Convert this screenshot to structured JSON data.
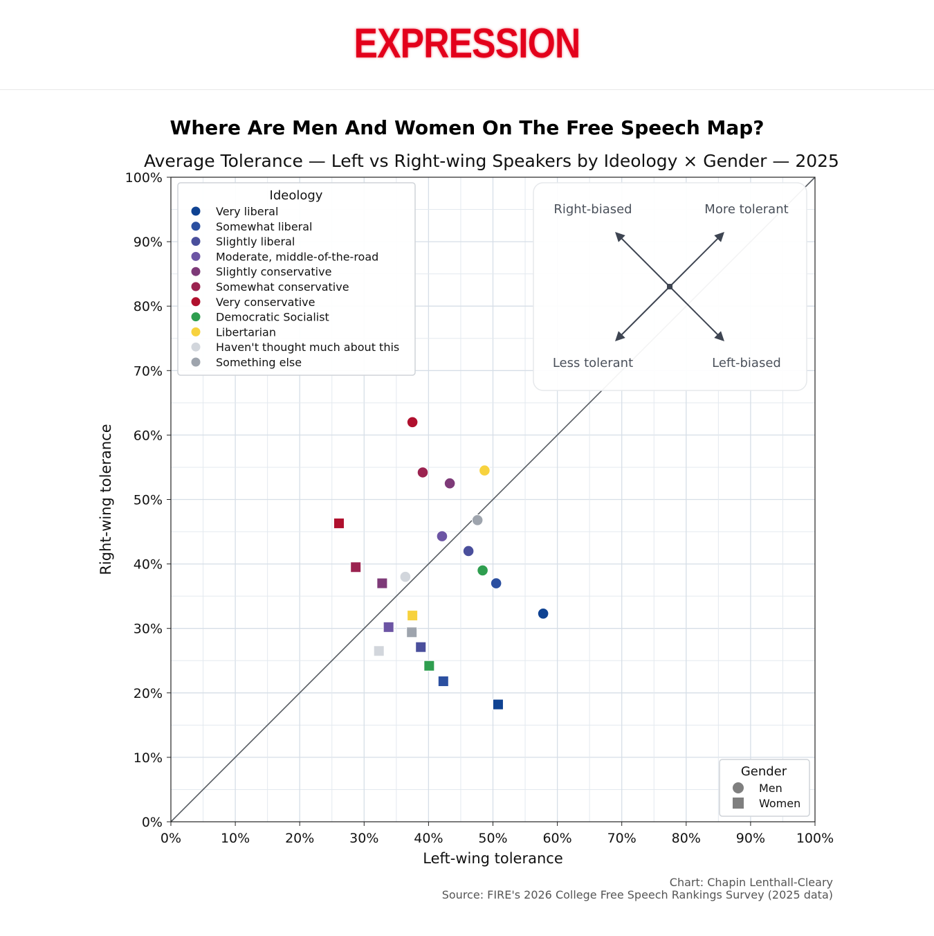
{
  "brand": {
    "logo_text": "EXPRESSION",
    "color": "#e3001b"
  },
  "chart_data": {
    "type": "scatter",
    "title": "Where Are Men And Women On The Free Speech Map?",
    "subtitle": "Average Tolerance — Left vs Right-wing Speakers by Ideology × Gender — 2025",
    "xlabel": "Left-wing tolerance",
    "ylabel": "Right-wing tolerance",
    "xlim": [
      0,
      100
    ],
    "ylim": [
      0,
      100
    ],
    "ticks": [
      0,
      10,
      20,
      30,
      40,
      50,
      60,
      70,
      80,
      90,
      100
    ],
    "tick_labels": [
      "0%",
      "10%",
      "20%",
      "30%",
      "40%",
      "50%",
      "60%",
      "70%",
      "80%",
      "90%",
      "100%"
    ],
    "grid": true,
    "diagonal_reference": true,
    "legend_ideology": {
      "title": "Ideology",
      "placement": "top-left",
      "items": [
        {
          "label": "Very liberal",
          "color": "#0f4292"
        },
        {
          "label": "Somewhat liberal",
          "color": "#2b4fa0"
        },
        {
          "label": "Slightly liberal",
          "color": "#4a4f9c"
        },
        {
          "label": "Moderate, middle-of-the-road",
          "color": "#6c55a4"
        },
        {
          "label": "Slightly conservative",
          "color": "#7e3a78"
        },
        {
          "label": "Somewhat conservative",
          "color": "#9b2350"
        },
        {
          "label": "Very conservative",
          "color": "#b0102e"
        },
        {
          "label": "Democratic Socialist",
          "color": "#2e9e4f"
        },
        {
          "label": "Libertarian",
          "color": "#f7d23e"
        },
        {
          "label": "Haven't thought much about this",
          "color": "#d2d6dc"
        },
        {
          "label": "Something else",
          "color": "#9ea4ad"
        }
      ]
    },
    "legend_gender": {
      "title": "Gender",
      "placement": "bottom-right",
      "items": [
        {
          "label": "Men",
          "marker": "circle"
        },
        {
          "label": "Women",
          "marker": "square"
        }
      ]
    },
    "quadrant_guide": {
      "top_left": "Right-biased",
      "top_right": "More tolerant",
      "bottom_left": "Less tolerant",
      "bottom_right": "Left-biased"
    },
    "series": [
      {
        "ideology": "Very liberal",
        "men": [
          57.8,
          32.3
        ],
        "women": [
          50.8,
          18.2
        ]
      },
      {
        "ideology": "Somewhat liberal",
        "men": [
          50.5,
          37.0
        ],
        "women": [
          42.3,
          21.8
        ]
      },
      {
        "ideology": "Slightly liberal",
        "men": [
          46.2,
          42.0
        ],
        "women": [
          38.8,
          27.1
        ]
      },
      {
        "ideology": "Moderate, middle-of-the-road",
        "men": [
          42.1,
          44.3
        ],
        "women": [
          33.8,
          30.2
        ]
      },
      {
        "ideology": "Slightly conservative",
        "men": [
          43.3,
          52.5
        ],
        "women": [
          32.8,
          37.0
        ]
      },
      {
        "ideology": "Somewhat conservative",
        "men": [
          39.1,
          54.2
        ],
        "women": [
          28.7,
          39.5
        ]
      },
      {
        "ideology": "Very conservative",
        "men": [
          37.5,
          62.0
        ],
        "women": [
          26.1,
          46.3
        ]
      },
      {
        "ideology": "Democratic Socialist",
        "men": [
          48.4,
          39.0
        ],
        "women": [
          40.1,
          24.2
        ]
      },
      {
        "ideology": "Libertarian",
        "men": [
          48.7,
          54.5
        ],
        "women": [
          37.5,
          32.0
        ]
      },
      {
        "ideology": "Haven't thought much about this",
        "men": [
          36.4,
          38.0
        ],
        "women": [
          32.3,
          26.5
        ]
      },
      {
        "ideology": "Something else",
        "men": [
          47.6,
          46.8
        ],
        "women": [
          37.4,
          29.4
        ]
      }
    ]
  },
  "footer": {
    "credit": "Chart: Chapin Lenthall-Cleary",
    "source": "Source: FIRE's 2026 College Free Speech Rankings Survey (2025 data)"
  }
}
